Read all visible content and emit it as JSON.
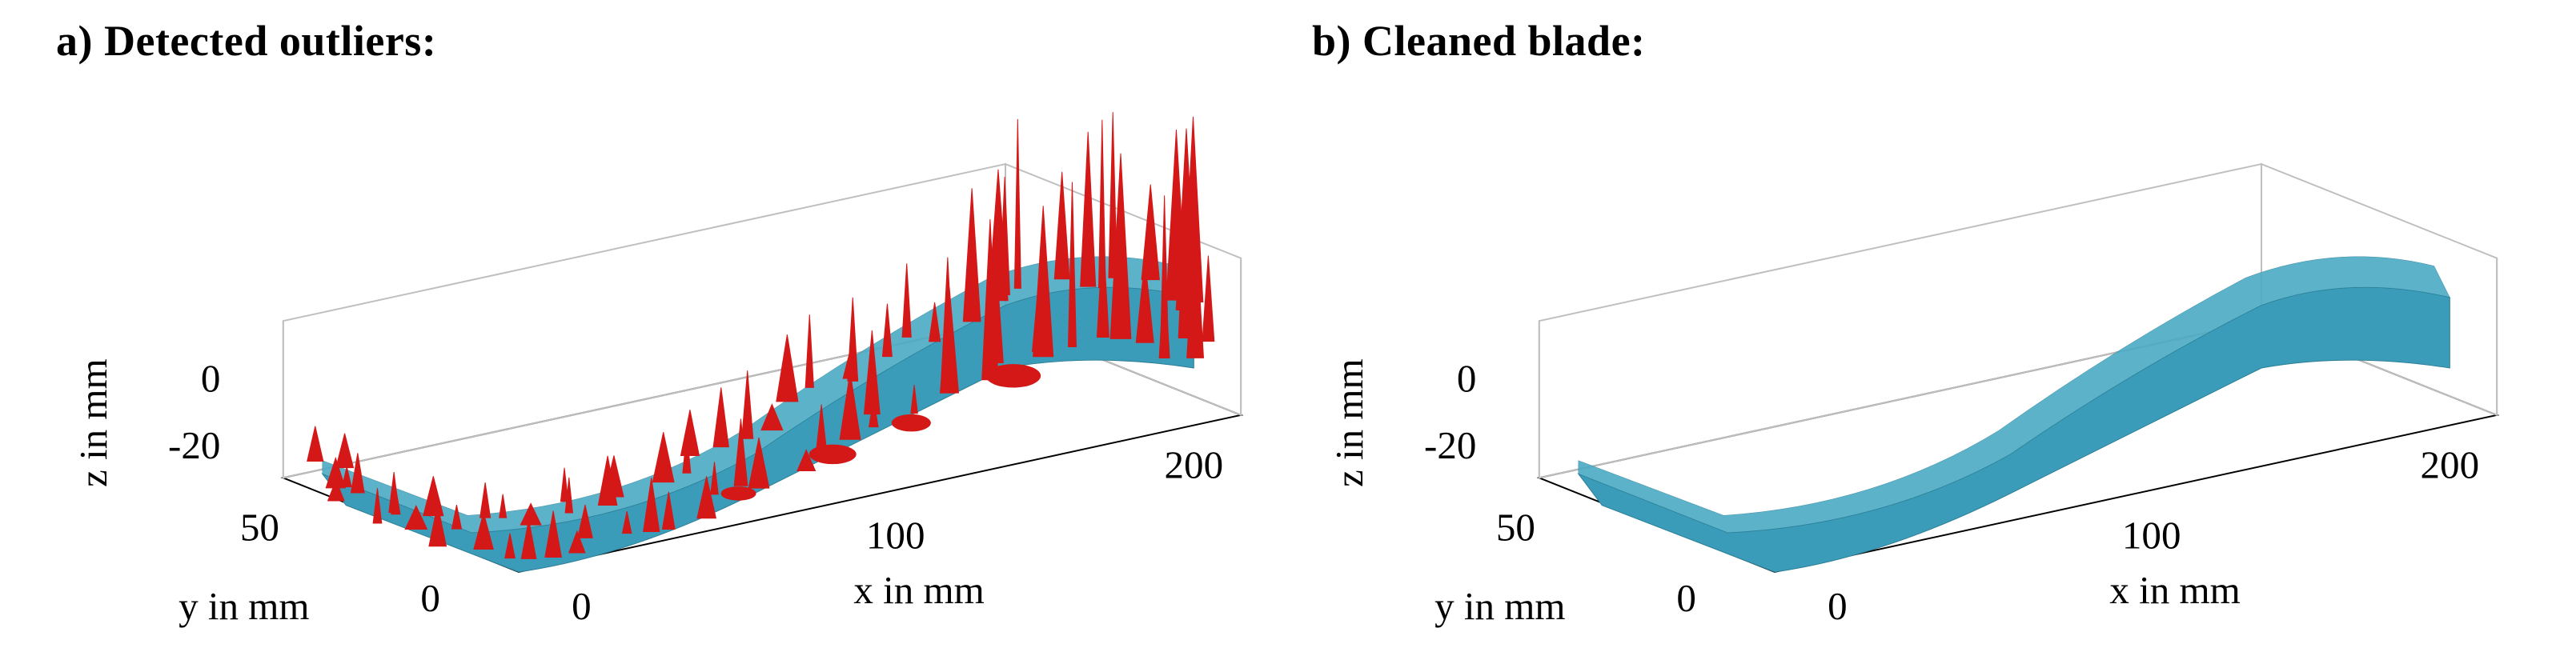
{
  "figure": {
    "background_color": "#ffffff",
    "font_family": "Times New Roman",
    "panels": [
      {
        "id": "a",
        "title": "a) Detected outliers:",
        "title_fontsize": 54,
        "title_fontweight": "bold",
        "type": "surface3d",
        "surface_color": "#3a9cb8",
        "outlier_color": "#d41818",
        "axes": {
          "x": {
            "label": "x in mm",
            "min": 0,
            "max": 220,
            "ticks": [
              0,
              100,
              200
            ]
          },
          "y": {
            "label": "y in mm",
            "min": 0,
            "max": 70,
            "ticks": [
              0,
              50
            ]
          },
          "z": {
            "label": "z in mm",
            "min": -25,
            "max": 30,
            "ticks": [
              -20,
              0
            ]
          }
        },
        "grid_color": "#bfbfbf",
        "axis_color": "#000000",
        "axis_label_fontsize": 50,
        "tick_label_fontsize": 50,
        "view": {
          "azimuth": -35,
          "elevation": 25
        },
        "surface_profile_z": [
          -22,
          -22,
          -21,
          -20,
          -15,
          -5,
          5,
          10,
          12,
          12,
          10
        ],
        "outliers_count_approx": 80
      },
      {
        "id": "b",
        "title": "b) Cleaned blade:",
        "title_fontsize": 54,
        "title_fontweight": "bold",
        "type": "surface3d",
        "surface_color": "#3a9cb8",
        "axes": {
          "x": {
            "label": "x in mm",
            "min": 0,
            "max": 220,
            "ticks": [
              0,
              100,
              200
            ]
          },
          "y": {
            "label": "y in mm",
            "min": 0,
            "max": 70,
            "ticks": [
              0,
              50
            ]
          },
          "z": {
            "label": "z in mm",
            "min": -25,
            "max": 30,
            "ticks": [
              -20,
              0
            ]
          }
        },
        "grid_color": "#bfbfbf",
        "axis_color": "#000000",
        "axis_label_fontsize": 50,
        "tick_label_fontsize": 50,
        "view": {
          "azimuth": -35,
          "elevation": 25
        },
        "surface_profile_z": [
          -22,
          -22,
          -21,
          -20,
          -15,
          -5,
          5,
          10,
          12,
          12,
          10
        ]
      }
    ]
  }
}
